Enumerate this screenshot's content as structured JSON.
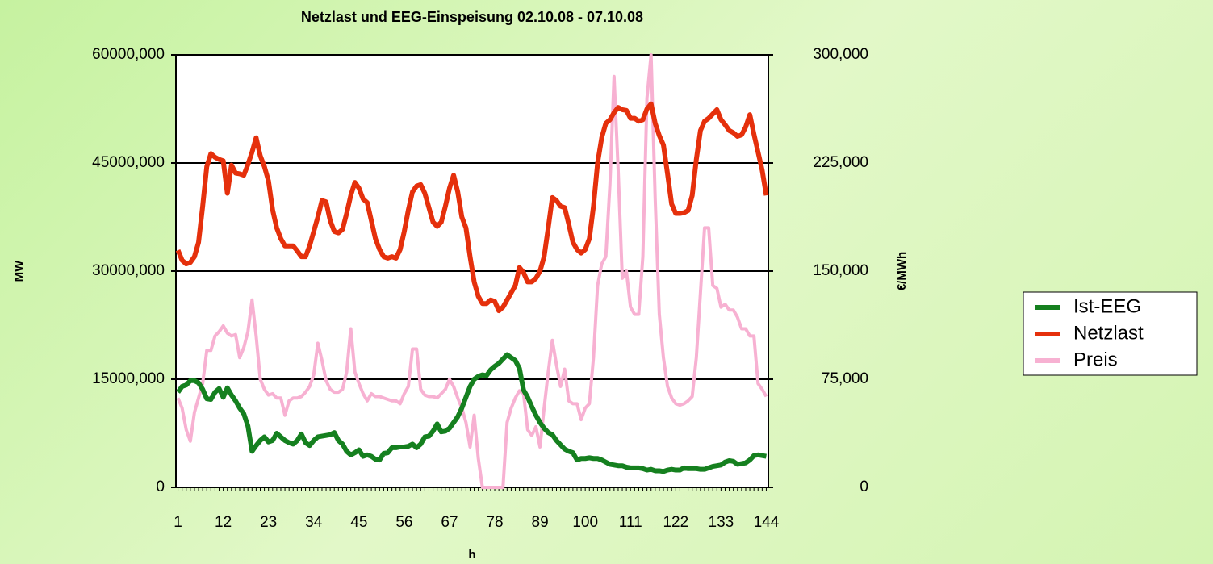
{
  "chart_data": {
    "type": "line",
    "title": "Netzlast und EEG-Einspeisung 02.10.08 - 07.10.08",
    "xlabel": "h",
    "ylabel": "MW",
    "y2label": "€/MWh",
    "x": [
      1,
      2,
      3,
      4,
      5,
      6,
      7,
      8,
      9,
      10,
      11,
      12,
      13,
      14,
      15,
      16,
      17,
      18,
      19,
      20,
      21,
      22,
      23,
      24,
      25,
      26,
      27,
      28,
      29,
      30,
      31,
      32,
      33,
      34,
      35,
      36,
      37,
      38,
      39,
      40,
      41,
      42,
      43,
      44,
      45,
      46,
      47,
      48,
      49,
      50,
      51,
      52,
      53,
      54,
      55,
      56,
      57,
      58,
      59,
      60,
      61,
      62,
      63,
      64,
      65,
      66,
      67,
      68,
      69,
      70,
      71,
      72,
      73,
      74,
      75,
      76,
      77,
      78,
      79,
      80,
      81,
      82,
      83,
      84,
      85,
      86,
      87,
      88,
      89,
      90,
      91,
      92,
      93,
      94,
      95,
      96,
      97,
      98,
      99,
      100,
      101,
      102,
      103,
      104,
      105,
      106,
      107,
      108,
      109,
      110,
      111,
      112,
      113,
      114,
      115,
      116,
      117,
      118,
      119,
      120,
      121,
      122,
      123,
      124,
      125,
      126,
      127,
      128,
      129,
      130,
      131,
      132,
      133,
      134,
      135,
      136,
      137,
      138,
      139,
      140,
      141,
      142,
      143,
      144
    ],
    "xlim": [
      0.5,
      144.5
    ],
    "xticks": [
      1,
      12,
      23,
      34,
      45,
      56,
      67,
      78,
      89,
      100,
      111,
      122,
      133,
      144
    ],
    "ylim": [
      0,
      60000
    ],
    "yticks": [
      0,
      {
        "value": 15000,
        "label": "15000,000"
      },
      {
        "value": 30000,
        "label": "30000,000"
      },
      {
        "value": 45000,
        "label": "45000,000"
      },
      {
        "value": 60000,
        "label": "60000,000"
      }
    ],
    "y2lim": [
      0,
      300
    ],
    "y2ticks": [
      0,
      {
        "value": 75,
        "label": "75,000"
      },
      {
        "value": 150,
        "label": "150,000"
      },
      {
        "value": 225,
        "label": "225,000"
      },
      {
        "value": 300,
        "label": "300,000"
      }
    ],
    "grid": true,
    "legend": "right",
    "series": [
      {
        "name": "Ist-EEG",
        "color": "#15801f",
        "values": [
          13200,
          14000,
          14200,
          14800,
          14800,
          14500,
          13600,
          12300,
          12200,
          13200,
          13700,
          12500,
          13800,
          12800,
          12000,
          11000,
          10200,
          8500,
          5000,
          5800,
          6500,
          7000,
          6300,
          6500,
          7500,
          7000,
          6500,
          6200,
          6000,
          6500,
          7400,
          6200,
          5800,
          6500,
          7000,
          7100,
          7200,
          7300,
          7600,
          6500,
          6000,
          5000,
          4500,
          4800,
          5200,
          4300,
          4500,
          4300,
          3900,
          3800,
          4700,
          4800,
          5500,
          5500,
          5600,
          5600,
          5700,
          6000,
          5500,
          6000,
          7000,
          7100,
          7800,
          8800,
          7700,
          7800,
          8200,
          9000,
          9800,
          11000,
          12500,
          14000,
          15000,
          15400,
          15600,
          15500,
          16300,
          16800,
          17200,
          17800,
          18400,
          18000,
          17600,
          16500,
          13500,
          12500,
          11200,
          10000,
          9000,
          8200,
          7600,
          7300,
          6500,
          5900,
          5300,
          5000,
          4800,
          3800,
          4000,
          4000,
          4100,
          4000,
          4000,
          3800,
          3500,
          3200,
          3100,
          3000,
          3000,
          2800,
          2700,
          2700,
          2700,
          2600,
          2400,
          2500,
          2300,
          2300,
          2200,
          2400,
          2500,
          2400,
          2400,
          2700,
          2600,
          2600,
          2600,
          2500,
          2500,
          2700,
          2900,
          3000,
          3100,
          3500,
          3700,
          3600,
          3200,
          3300,
          3400,
          3800,
          4400,
          4500,
          4400,
          4300
        ]
      },
      {
        "name": "Netzlast",
        "color": "#e5300c",
        "values": [
          32900,
          31500,
          31000,
          31200,
          32000,
          34000,
          39000,
          44500,
          46300,
          45800,
          45500,
          45300,
          40800,
          44700,
          43600,
          43500,
          43300,
          44800,
          46500,
          48500,
          46000,
          44500,
          42500,
          38500,
          36000,
          34500,
          33500,
          33500,
          33500,
          32800,
          32000,
          32000,
          33500,
          35500,
          37500,
          39800,
          39600,
          37000,
          35500,
          35300,
          35800,
          38000,
          40500,
          42300,
          41500,
          40000,
          39500,
          37000,
          34500,
          33000,
          32000,
          31800,
          32000,
          31800,
          33000,
          35500,
          38500,
          41000,
          41800,
          42000,
          40800,
          38800,
          36800,
          36200,
          36800,
          39000,
          41500,
          43300,
          41000,
          37500,
          36000,
          32000,
          28500,
          26500,
          25500,
          25500,
          26000,
          25800,
          24500,
          25000,
          26000,
          27000,
          28000,
          30500,
          29800,
          28500,
          28500,
          29000,
          30000,
          32000,
          36000,
          40200,
          39800,
          39000,
          38800,
          36500,
          34000,
          33000,
          32500,
          33000,
          34500,
          39000,
          45000,
          48500,
          50500,
          51000,
          52000,
          52700,
          52400,
          52300,
          51200,
          51200,
          50800,
          51000,
          52500,
          53200,
          50500,
          48800,
          47500,
          43500,
          39300,
          38000,
          38000,
          38100,
          38400,
          40500,
          45500,
          49500,
          50800,
          51200,
          51800,
          52400,
          51000,
          50300,
          49500,
          49200,
          48700,
          48900,
          50000,
          51700,
          49000,
          46500,
          44000,
          40500
        ]
      },
      {
        "name": "Preis",
        "color": "#f7b1d2",
        "axis": "y2",
        "values": [
          62,
          55,
          40,
          32,
          52,
          62,
          72,
          95,
          95,
          105,
          108,
          112,
          107,
          105,
          106,
          90,
          97,
          108,
          130,
          105,
          75,
          68,
          64,
          65,
          62,
          62,
          50,
          60,
          62,
          62,
          63,
          66,
          70,
          78,
          100,
          88,
          74,
          68,
          66,
          66,
          68,
          80,
          110,
          80,
          72,
          65,
          60,
          65,
          63,
          63,
          62,
          61,
          60,
          60,
          58,
          65,
          70,
          96,
          96,
          68,
          64,
          63,
          63,
          62,
          65,
          68,
          75,
          70,
          62,
          55,
          45,
          28,
          50,
          20,
          0,
          0,
          0,
          0,
          0,
          0,
          45,
          55,
          62,
          67,
          65,
          40,
          36,
          42,
          28,
          55,
          80,
          102,
          85,
          70,
          82,
          60,
          58,
          58,
          47,
          55,
          58,
          90,
          140,
          155,
          160,
          210,
          285,
          220,
          145,
          150,
          125,
          120,
          120,
          160,
          270,
          300,
          200,
          120,
          90,
          70,
          62,
          58,
          57,
          58,
          60,
          63,
          90,
          135,
          180,
          180,
          140,
          138,
          125,
          127,
          123,
          123,
          118,
          110,
          110,
          105,
          105,
          72,
          68,
          63
        ]
      }
    ]
  }
}
